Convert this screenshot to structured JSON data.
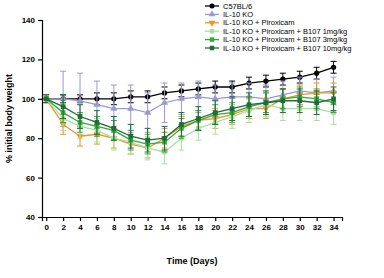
{
  "chart_data": {
    "type": "line",
    "x_label": "Time (Days)",
    "y_label": "% initial body weight",
    "x": [
      0,
      2,
      4,
      6,
      8,
      10,
      12,
      14,
      16,
      18,
      20,
      22,
      24,
      26,
      28,
      30,
      32,
      34
    ],
    "xlim": [
      -0.5,
      35
    ],
    "xticks": [
      0,
      2,
      4,
      6,
      8,
      10,
      12,
      14,
      16,
      18,
      20,
      22,
      24,
      26,
      28,
      30,
      32,
      34
    ],
    "ylim": [
      40,
      140
    ],
    "yticks": [
      40,
      60,
      80,
      100,
      120,
      140
    ],
    "legend": "top-right",
    "series": [
      {
        "name": "C57BL/6",
        "color": "#000000",
        "marker": "circle",
        "values": [
          100,
          100,
          100,
          100,
          100,
          101,
          101,
          103,
          104,
          105,
          106,
          106,
          108,
          109,
          110,
          111,
          113,
          116
        ],
        "errors": [
          2,
          2,
          2,
          3,
          3,
          3,
          3,
          3,
          3,
          3,
          3,
          3,
          3,
          3,
          3,
          3,
          3,
          3
        ]
      },
      {
        "name": "IL-10 KO",
        "color": "#9a9ad0",
        "marker": "triangle-up",
        "values": [
          100,
          100,
          99,
          97,
          95,
          95,
          93,
          98,
          100,
          101,
          100,
          101,
          101,
          100,
          102,
          104,
          103,
          104
        ],
        "errors": [
          0,
          14,
          14,
          12,
          12,
          12,
          10,
          10,
          8,
          8,
          7,
          7,
          7,
          7,
          7,
          7,
          7,
          7
        ]
      },
      {
        "name": "IL-10 KO + Piroxicam",
        "color": "#e8972a",
        "marker": "triangle-down",
        "values": [
          100,
          87,
          81,
          82,
          80,
          77,
          75,
          80,
          86,
          89,
          90,
          92,
          95,
          95,
          100,
          102,
          103,
          103
        ],
        "errors": [
          0,
          5,
          5,
          5,
          5,
          5,
          5,
          5,
          5,
          5,
          5,
          5,
          5,
          5,
          5,
          5,
          5,
          5
        ]
      },
      {
        "name": "IL-10 KO + Piroxicam + B107 1mg/kg",
        "color": "#a8e0a0",
        "marker": "square",
        "values": [
          100,
          90,
          86,
          84,
          80,
          78,
          75,
          73,
          80,
          85,
          88,
          91,
          94,
          97,
          95,
          95,
          95,
          93
        ],
        "errors": [
          0,
          6,
          6,
          6,
          6,
          6,
          6,
          6,
          6,
          6,
          6,
          6,
          6,
          6,
          6,
          6,
          6,
          6
        ]
      },
      {
        "name": "IL-10 KO + Piroxicam + B107 3mg/kg",
        "color": "#33aa33",
        "marker": "square",
        "values": [
          100,
          93,
          88,
          86,
          84,
          79,
          77,
          78,
          85,
          89,
          92,
          93,
          96,
          98,
          100,
          101,
          100,
          98
        ],
        "errors": [
          0,
          5,
          5,
          5,
          5,
          5,
          5,
          5,
          5,
          5,
          5,
          5,
          5,
          5,
          5,
          5,
          5,
          5
        ]
      },
      {
        "name": "IL-10 KO + Piroxicam + B107 10mg/kg",
        "color": "#1e6b3c",
        "marker": "square",
        "values": [
          100,
          96,
          91,
          88,
          85,
          81,
          79,
          80,
          87,
          90,
          93,
          95,
          97,
          98,
          99,
          99,
          98,
          100
        ],
        "errors": [
          0,
          6,
          6,
          6,
          6,
          6,
          6,
          6,
          6,
          6,
          6,
          6,
          6,
          6,
          6,
          6,
          6,
          6
        ]
      }
    ]
  }
}
